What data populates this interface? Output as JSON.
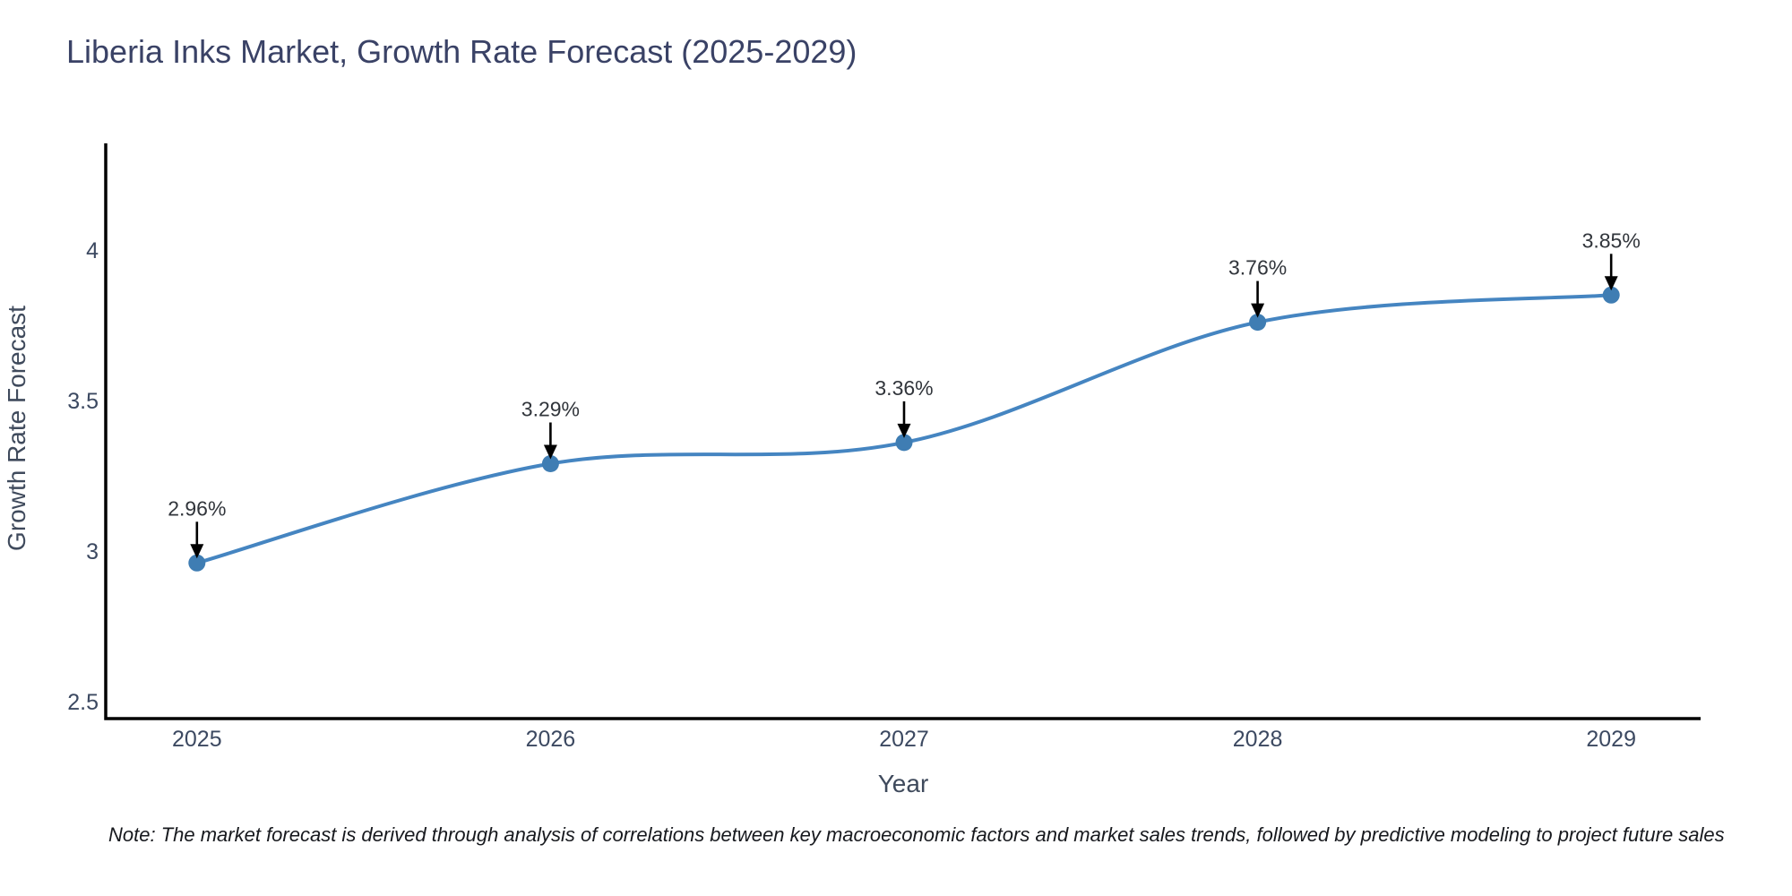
{
  "chart_data": {
    "type": "line",
    "title": "Liberia Inks Market, Growth Rate Forecast (2025-2029)",
    "xlabel": "Year",
    "ylabel": "Growth Rate Forecast",
    "x": [
      2025,
      2026,
      2027,
      2028,
      2029
    ],
    "series": [
      {
        "name": "Growth Rate Forecast",
        "values": [
          2.96,
          3.29,
          3.36,
          3.76,
          3.85
        ]
      }
    ],
    "point_labels": [
      "2.96%",
      "3.29%",
      "3.36%",
      "3.76%",
      "3.85%"
    ],
    "yticks": [
      4,
      3.5,
      3,
      2.5
    ],
    "xticks": [
      "2025",
      "2026",
      "2027",
      "2028",
      "2029"
    ],
    "ylim": [
      2.443,
      4.354
    ],
    "xlim": [
      2024.742,
      2029.253
    ],
    "grid": false,
    "legend_position": "none",
    "line_shape": "spline",
    "marker": "circle",
    "annotation_arrows": true,
    "colors": {
      "line": "#4585c1",
      "marker": "#3f7db3",
      "axis": "#000000",
      "arrow": "#000000",
      "title": "#3a4266",
      "tick": "#3c4961",
      "annotation": "#31353b"
    },
    "note": "Note: The market forecast is derived through analysis of correlations between key macroeconomic factors and market sales trends, followed by predictive modeling to project future sales"
  }
}
